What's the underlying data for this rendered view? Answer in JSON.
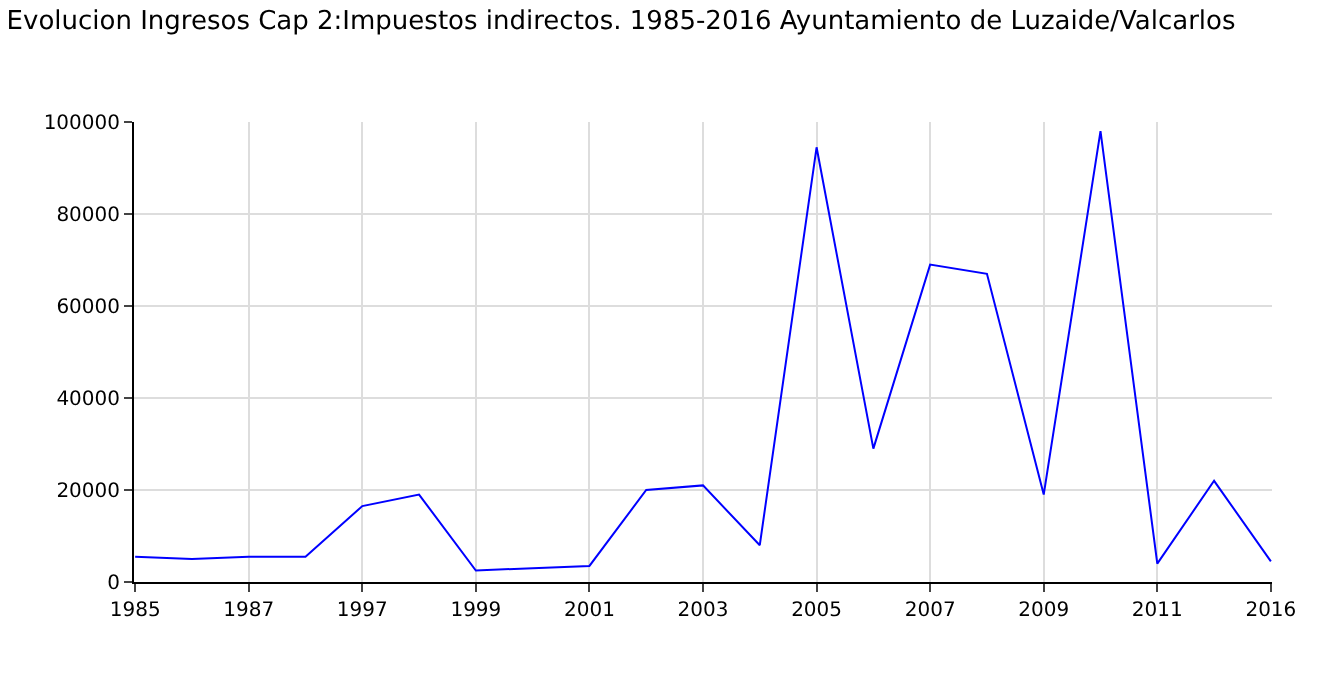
{
  "chart_data": {
    "type": "line",
    "title": "Evolucion Ingresos Cap 2:Impuestos indirectos. 1985-2016 Ayuntamiento de Luzaide/Valcarlos",
    "categories": [
      "1985",
      null,
      "1987",
      null,
      "1997",
      null,
      "1999",
      null,
      "2001",
      null,
      "2003",
      null,
      "2005",
      null,
      "2007",
      null,
      "2009",
      null,
      "2011",
      null,
      "2016"
    ],
    "series": [
      {
        "color": "#0000ff",
        "values": [
          5500,
          5000,
          5500,
          5500,
          16500,
          19000,
          2500,
          3000,
          3500,
          20000,
          21000,
          8000,
          94500,
          29000,
          69000,
          67000,
          19000,
          98000,
          4000,
          22000,
          4500
        ]
      }
    ],
    "ylim": [
      0,
      100000
    ],
    "yticks": [
      0,
      20000,
      40000,
      60000,
      80000,
      100000
    ],
    "grid": true,
    "legend": false,
    "marker": "none",
    "line_style": "solid"
  }
}
